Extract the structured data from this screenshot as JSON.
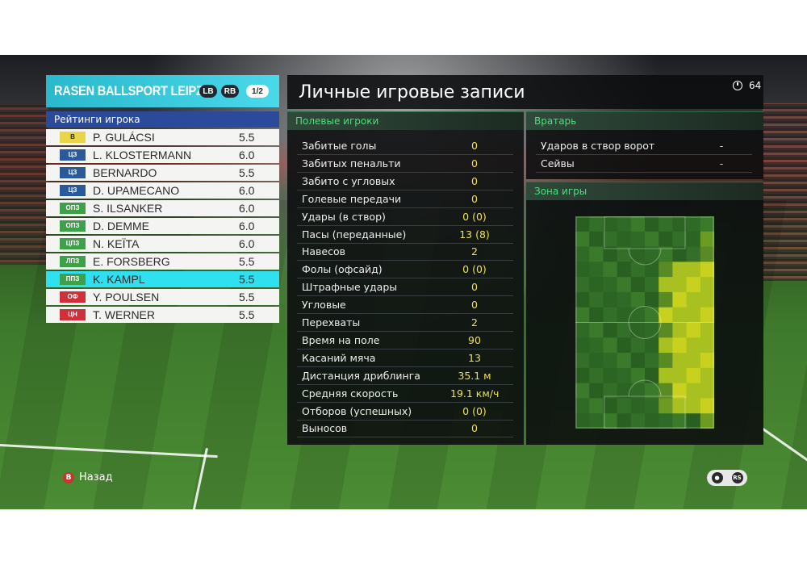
{
  "team": {
    "name": "RASEN BALLSPORT LEIPZIG",
    "btn_lb": "LB",
    "btn_rb": "RB",
    "page": "1/2"
  },
  "ratings_title": "Рейтинги игрока",
  "players": [
    {
      "pos": "В",
      "pos_bg": "#e9d44a",
      "pos_fg": "#2a2a2a",
      "name": "P. GULÁCSI",
      "rating": "5.5"
    },
    {
      "pos": "ЦЗ",
      "pos_bg": "#2b5a9a",
      "pos_fg": "#ffffff",
      "name": "L. KLOSTERMANN",
      "rating": "6.0"
    },
    {
      "pos": "ЦЗ",
      "pos_bg": "#2b5a9a",
      "pos_fg": "#ffffff",
      "name": "BERNARDO",
      "rating": "5.5"
    },
    {
      "pos": "ЦЗ",
      "pos_bg": "#2b5a9a",
      "pos_fg": "#ffffff",
      "name": "D. UPAMECANO",
      "rating": "6.0"
    },
    {
      "pos": "ОПЗ",
      "pos_bg": "#3fa04a",
      "pos_fg": "#ffffff",
      "name": "S. ILSANKER",
      "rating": "6.0"
    },
    {
      "pos": "ОПЗ",
      "pos_bg": "#3fa04a",
      "pos_fg": "#ffffff",
      "name": "D. DEMME",
      "rating": "6.0"
    },
    {
      "pos": "ЦПЗ",
      "pos_bg": "#3fa04a",
      "pos_fg": "#ffffff",
      "name": "N. KEÏTA",
      "rating": "6.0"
    },
    {
      "pos": "ЛПЗ",
      "pos_bg": "#3fa04a",
      "pos_fg": "#ffffff",
      "name": "E. FORSBERG",
      "rating": "5.5"
    },
    {
      "pos": "ППЗ",
      "pos_bg": "#3fa04a",
      "pos_fg": "#ffffff",
      "name": "K. KAMPL",
      "rating": "5.5",
      "selected": true
    },
    {
      "pos": "ОФ",
      "pos_bg": "#d0303a",
      "pos_fg": "#ffffff",
      "name": "Y. POULSEN",
      "rating": "5.5"
    },
    {
      "pos": "ЦН",
      "pos_bg": "#d0303a",
      "pos_fg": "#ffffff",
      "name": "T. WERNER",
      "rating": "5.5"
    }
  ],
  "title": "Личные игровые записи",
  "timer": "64",
  "field_players_title": "Полевые игроки",
  "field_stats": [
    {
      "label": "Забитые голы",
      "value": "0"
    },
    {
      "label": "Забитых пенальти",
      "value": "0"
    },
    {
      "label": "Забито с угловых",
      "value": "0"
    },
    {
      "label": "Голевые передачи",
      "value": "0"
    },
    {
      "label": "Удары (в створ)",
      "value": "0 (0)"
    },
    {
      "label": "Пасы (переданные)",
      "value": "13 (8)"
    },
    {
      "label": "Навесов",
      "value": "2"
    },
    {
      "label": "Фолы (офсайд)",
      "value": "0 (0)"
    },
    {
      "label": "Штрафные удары",
      "value": "0"
    },
    {
      "label": "Угловые",
      "value": "0"
    },
    {
      "label": "Перехваты",
      "value": "2"
    },
    {
      "label": "Время на поле",
      "value": "90"
    },
    {
      "label": "Касаний мяча",
      "value": "13"
    },
    {
      "label": "Дистанция дриблинга",
      "value": "35.1 м"
    },
    {
      "label": "Средняя скорость",
      "value": "19.1 км/ч"
    },
    {
      "label": "Отборов (успешных)",
      "value": "0 (0)"
    },
    {
      "label": "Выносов",
      "value": "0"
    }
  ],
  "goalkeeper_title": "Вратарь",
  "gk_stats": [
    {
      "label": "Ударов в створ ворот",
      "value": "-"
    },
    {
      "label": "Сейвы",
      "value": "-"
    }
  ],
  "zone_title": "Зона игры",
  "footer": {
    "back_key": "B",
    "back_label": "Назад",
    "rs_label": "RS"
  }
}
